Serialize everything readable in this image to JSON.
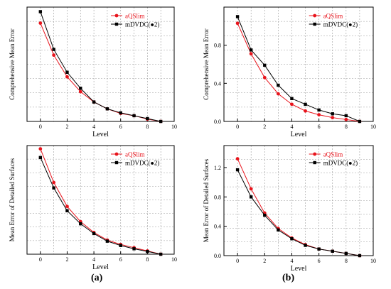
{
  "panel_labels": {
    "a": "(a)",
    "b": "(b)"
  },
  "colors": {
    "aqslim": "#e8141c",
    "mdvdc": "#000000",
    "grid": "#9a9a9a",
    "axis": "#000000"
  },
  "chart_data": [
    {
      "type": "line",
      "xlabel": "Level",
      "ylabel": "Comprehensive Mean Error",
      "xlim": [
        -1,
        10
      ],
      "xticks": [
        0,
        2,
        4,
        6,
        8,
        10
      ],
      "yticks": [],
      "grid": true,
      "legend": "top-right",
      "x": [
        0,
        1,
        2,
        3,
        4,
        5,
        6,
        7,
        8,
        9
      ],
      "series": [
        {
          "name": "aQSlim",
          "marker": "circle",
          "color": "#e8141c",
          "values": [
            0.86,
            0.58,
            0.39,
            0.26,
            0.17,
            0.11,
            0.07,
            0.05,
            0.02,
            0.0
          ]
        },
        {
          "name": "mDVDC(●2)",
          "marker": "square",
          "color": "#000000",
          "values": [
            0.96,
            0.63,
            0.43,
            0.29,
            0.17,
            0.11,
            0.075,
            0.05,
            0.025,
            0.0
          ]
        }
      ]
    },
    {
      "type": "line",
      "xlabel": "Level",
      "ylabel": "Comprehensive Mean Error",
      "xlim": [
        -1,
        10
      ],
      "xticks": [
        0,
        2,
        4,
        6,
        8,
        10
      ],
      "ylim": [
        0,
        1.2
      ],
      "yticks": [
        "0.0",
        "0.4",
        "0.8"
      ],
      "grid": true,
      "legend": "top-right",
      "x": [
        0,
        1,
        2,
        3,
        4,
        5,
        6,
        7,
        8,
        9
      ],
      "series": [
        {
          "name": "aQSlim",
          "marker": "circle",
          "color": "#e8141c",
          "values": [
            1.03,
            0.71,
            0.46,
            0.29,
            0.18,
            0.11,
            0.07,
            0.04,
            0.02,
            0.0
          ]
        },
        {
          "name": "mDVDC(●2)",
          "marker": "square",
          "color": "#000000",
          "values": [
            1.1,
            0.75,
            0.59,
            0.38,
            0.24,
            0.18,
            0.12,
            0.08,
            0.06,
            0.0
          ]
        }
      ]
    },
    {
      "type": "line",
      "xlabel": "Level",
      "ylabel": "Mean Error of Detailed Surfaces",
      "xlim": [
        -1,
        10
      ],
      "xticks": [
        0,
        2,
        4,
        6,
        8,
        10
      ],
      "yticks": [],
      "grid": true,
      "legend": "top-right",
      "x": [
        0,
        1,
        2,
        3,
        4,
        5,
        6,
        7,
        8,
        9
      ],
      "series": [
        {
          "name": "aQSlim",
          "marker": "circle",
          "color": "#e8141c",
          "values": [
            0.97,
            0.66,
            0.44,
            0.3,
            0.2,
            0.13,
            0.09,
            0.06,
            0.03,
            0.0
          ]
        },
        {
          "name": "mDVDC(●2)",
          "marker": "square",
          "color": "#000000",
          "values": [
            0.89,
            0.61,
            0.4,
            0.28,
            0.19,
            0.12,
            0.08,
            0.05,
            0.025,
            0.0
          ]
        }
      ]
    },
    {
      "type": "line",
      "xlabel": "Level",
      "ylabel": "Mean Error of Detailed Surfaces",
      "xlim": [
        -1,
        10
      ],
      "xticks": [
        0,
        2,
        4,
        6,
        8,
        10
      ],
      "ylim": [
        0,
        1.5
      ],
      "yticks": [
        "0.0",
        "0.4",
        "0.8",
        "1.2"
      ],
      "grid": true,
      "legend": "top-right",
      "x": [
        0,
        1,
        2,
        3,
        4,
        5,
        6,
        7,
        8,
        9
      ],
      "series": [
        {
          "name": "aQSlim",
          "marker": "circle",
          "color": "#e8141c",
          "values": [
            1.32,
            0.91,
            0.58,
            0.37,
            0.24,
            0.15,
            0.09,
            0.06,
            0.03,
            0.0
          ]
        },
        {
          "name": "mDVDC(●2)",
          "marker": "square",
          "color": "#000000",
          "values": [
            1.17,
            0.8,
            0.55,
            0.35,
            0.23,
            0.14,
            0.09,
            0.06,
            0.03,
            0.0
          ]
        }
      ]
    }
  ]
}
